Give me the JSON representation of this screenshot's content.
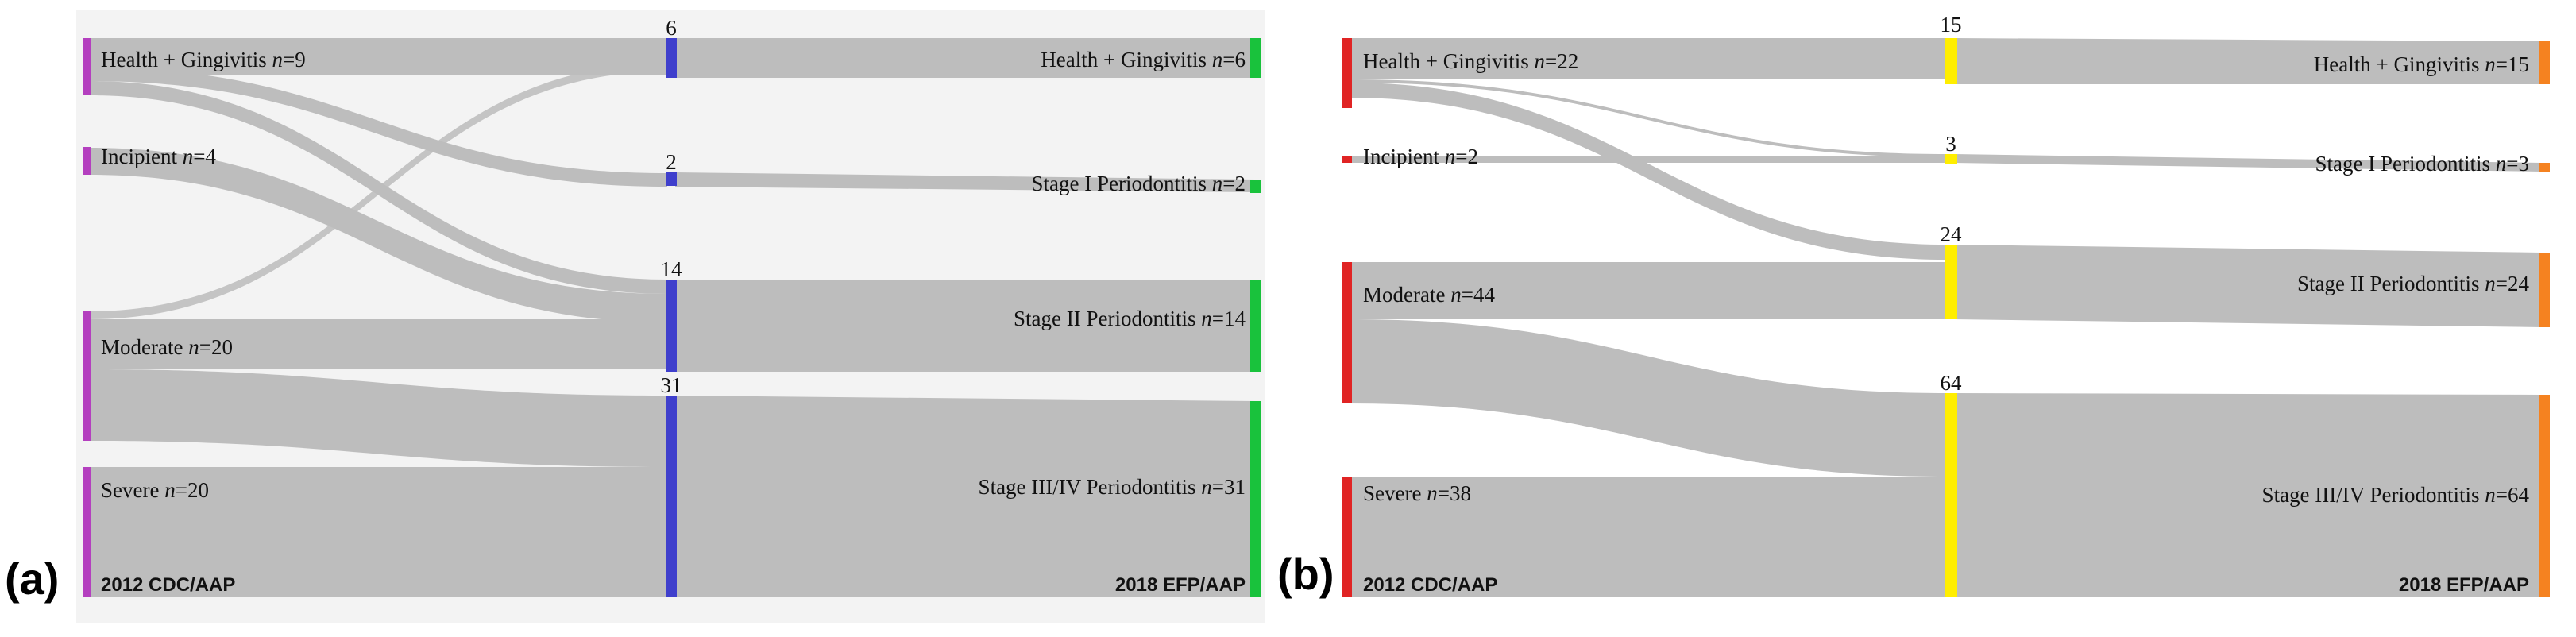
{
  "colors": {
    "panel_a_bg": "#f3f3f3",
    "link": "#bdbdbd",
    "a_left": "#b43fbf",
    "a_mid": "#3f3fcc",
    "a_right": "#19c23c",
    "b_left": "#e02424",
    "b_mid": "#ffee00",
    "b_right": "#f58220"
  },
  "panels": [
    {
      "tag": "(a)",
      "left_title": "2012 CDC/AAP",
      "right_title": "2018 EFP/AAP",
      "left_nodes": [
        {
          "label": "Health + Gingivitis ",
          "n": "9"
        },
        {
          "label": "Incipient ",
          "n": "4"
        },
        {
          "label": "Moderate ",
          "n": "20"
        },
        {
          "label": "Severe ",
          "n": "20"
        }
      ],
      "mid_counts": [
        "6",
        "2",
        "14",
        "31"
      ],
      "right_nodes": [
        {
          "label": "Health + Gingivitis ",
          "n": "6"
        },
        {
          "label": "Stage I Periodontitis ",
          "n": "2"
        },
        {
          "label": "Stage II Periodontitis ",
          "n": "14"
        },
        {
          "label": "Stage III/IV Periodontitis ",
          "n": "31"
        }
      ],
      "flows": [
        {
          "from": "Health + Gingivitis",
          "to": "Health + Gingivitis",
          "value": 5
        },
        {
          "from": "Health + Gingivitis",
          "to": "Stage I Periodontitis",
          "value": 2
        },
        {
          "from": "Health + Gingivitis",
          "to": "Stage II Periodontitis",
          "value": 2
        },
        {
          "from": "Incipient",
          "to": "Stage II Periodontitis",
          "value": 4
        },
        {
          "from": "Moderate",
          "to": "Health + Gingivitis",
          "value": 1
        },
        {
          "from": "Moderate",
          "to": "Stage II Periodontitis",
          "value": 8
        },
        {
          "from": "Moderate",
          "to": "Stage III/IV Periodontitis",
          "value": 11
        },
        {
          "from": "Severe",
          "to": "Stage III/IV Periodontitis",
          "value": 20
        }
      ]
    },
    {
      "tag": "(b)",
      "left_title": "2012 CDC/AAP",
      "right_title": "2018 EFP/AAP",
      "left_nodes": [
        {
          "label": "Health + Gingivitis ",
          "n": "22"
        },
        {
          "label": "Incipient ",
          "n": "2"
        },
        {
          "label": "Moderate ",
          "n": "44"
        },
        {
          "label": "Severe ",
          "n": "38"
        }
      ],
      "mid_counts": [
        "15",
        "3",
        "24",
        "64"
      ],
      "right_nodes": [
        {
          "label": "Health + Gingivitis ",
          "n": "15"
        },
        {
          "label": "Stage I Periodontitis ",
          "n": "3"
        },
        {
          "label": "Stage II Periodontitis ",
          "n": "24"
        },
        {
          "label": "Stage III/IV Periodontitis ",
          "n": "64"
        }
      ],
      "flows": [
        {
          "from": "Health + Gingivitis",
          "to": "Health + Gingivitis",
          "value": 15
        },
        {
          "from": "Health + Gingivitis",
          "to": "Stage I Periodontitis",
          "value": 1
        },
        {
          "from": "Health + Gingivitis",
          "to": "Stage II Periodontitis",
          "value": 6
        },
        {
          "from": "Incipient",
          "to": "Stage I Periodontitis",
          "value": 2
        },
        {
          "from": "Moderate",
          "to": "Stage II Periodontitis",
          "value": 18
        },
        {
          "from": "Moderate",
          "to": "Stage III/IV Periodontitis",
          "value": 26
        },
        {
          "from": "Severe",
          "to": "Stage III/IV Periodontitis",
          "value": 38
        }
      ]
    }
  ]
}
